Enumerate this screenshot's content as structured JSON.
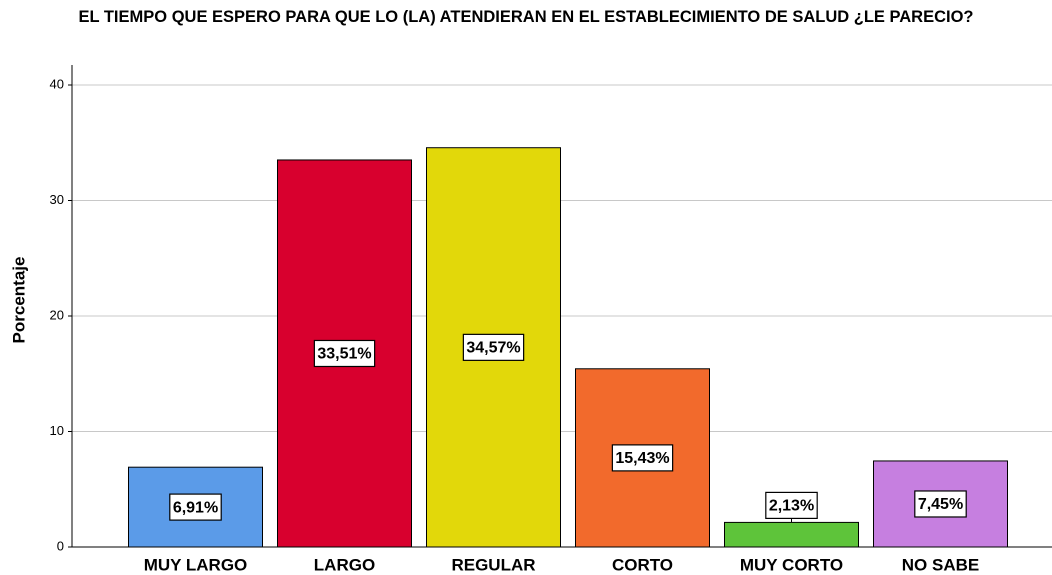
{
  "chart_data": {
    "type": "bar",
    "title": "EL TIEMPO QUE ESPERO PARA QUE LO (LA) ATENDIERAN EN EL ESTABLECIMIENTO DE SALUD ¿LE PARECIO?",
    "y_label": "Porcentaje",
    "categories": [
      "MUY LARGO",
      "LARGO",
      "REGULAR",
      "CORTO",
      "MUY CORTO",
      "NO SABE"
    ],
    "values": [
      6.91,
      33.51,
      34.57,
      15.43,
      2.13,
      7.45
    ],
    "value_labels": [
      "6,91%",
      "33,51%",
      "34,57%",
      "15,43%",
      "2,13%",
      "7,45%"
    ],
    "colors": [
      "#5b9be8",
      "#d8002e",
      "#e2d80a",
      "#f26a2c",
      "#5ec43a",
      "#c67fe0"
    ],
    "ylim": [
      0,
      40
    ],
    "yticks": [
      0,
      10,
      20,
      30,
      40
    ],
    "grid": true
  }
}
